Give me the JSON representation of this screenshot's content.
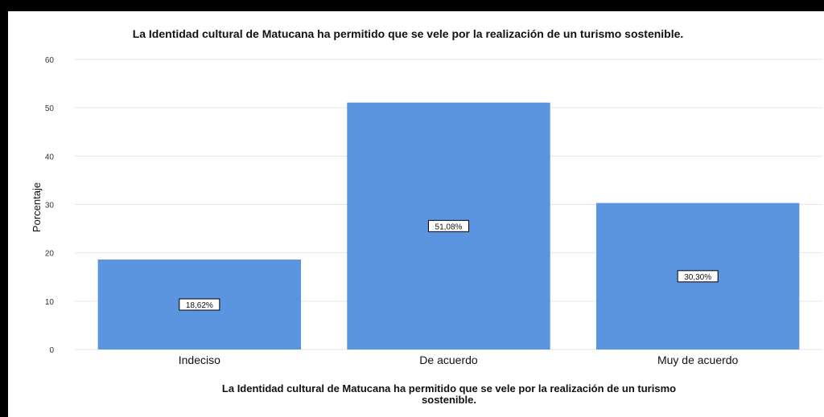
{
  "chart_data": {
    "type": "bar",
    "title": "La Identidad cultural de Matucana ha permitido que se vele por la realización de un turismo sostenible.",
    "xlabel_lines": [
      "La Identidad cultural de Matucana ha permitido que se vele por la realización de un turismo",
      "sostenible."
    ],
    "ylabel": "Porcentaje",
    "categories": [
      "Indeciso",
      "De acuerdo",
      "Muy de acuerdo"
    ],
    "values": [
      18.62,
      51.08,
      30.3
    ],
    "data_labels": [
      "18,62%",
      "51,08%",
      "30,30%"
    ],
    "ylim": [
      0,
      60
    ],
    "yticks": [
      0,
      10,
      20,
      30,
      40,
      50,
      60
    ],
    "grid": true,
    "legend": "none",
    "colors": {
      "bar": "#5b95e0",
      "grid": "#e6e6e6",
      "frame_border": "#000000"
    }
  }
}
